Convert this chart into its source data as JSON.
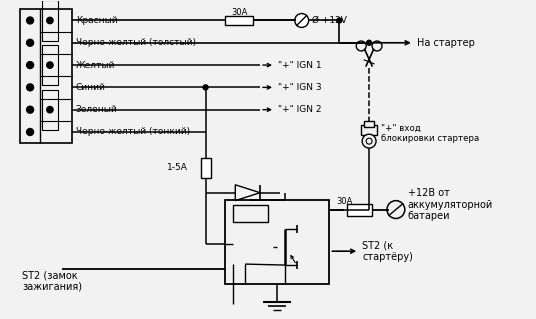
{
  "bg_color": "#f2f2f2",
  "line_color": "#000000",
  "fig_width": 5.36,
  "fig_height": 3.19,
  "dpi": 100,
  "connector_labels": [
    "Красный",
    "Черно-желтый (толстый)",
    "Желтый",
    "Синий",
    "Зеленый",
    "Черно-желтый (тонкий)"
  ],
  "ign_labels": [
    "\"+\" IGN 1",
    "\"+\" IGN 3",
    "\"+\" IGN 2"
  ],
  "label_30A_top": "30A",
  "label_30A_bot": "30A",
  "label_12v": "Ø +12V",
  "label_na_starter": "На стартер",
  "label_starter_block": "\"+\" вход\nблокировки стартера",
  "label_1_5A": "1-5A",
  "label_plus12v": "+12В от\nаккумуляторной\nбатареи",
  "label_st2_starter": "ST2 (к\nстартёру)",
  "label_st2_ignition": "ST2 (замок\nзажигания)"
}
